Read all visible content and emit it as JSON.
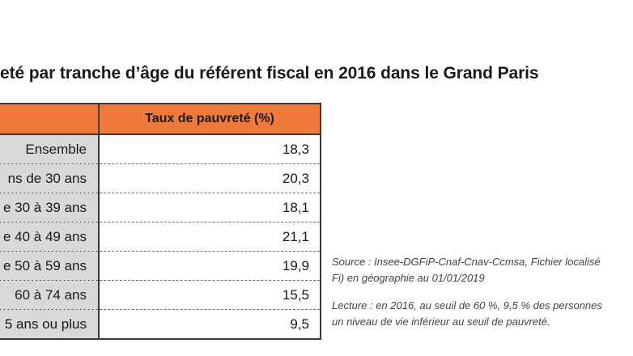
{
  "title": "eté par tranche d’âge du référent fiscal en 2016 dans le Grand Paris",
  "table": {
    "header_label": "",
    "header_value": "Taux de pauvreté (%)",
    "rows": [
      {
        "label": "Ensemble",
        "value": "18,3"
      },
      {
        "label": "ns de 30 ans",
        "value": "20,3"
      },
      {
        "label": "e 30 à 39 ans",
        "value": "18,1"
      },
      {
        "label": "e 40 à 49 ans",
        "value": "21,1"
      },
      {
        "label": "e 50 à 59 ans",
        "value": "19,9"
      },
      {
        "label": "60 à 74 ans",
        "value": "15,5"
      },
      {
        "label": "5 ans ou plus",
        "value": "9,5"
      }
    ]
  },
  "notes": {
    "source_line1": "Source : Insee-DGFiP-Cnaf-Cnav-Ccmsa, Fichier localisé",
    "source_line2": "Fi) en géographie au 01/01/2019",
    "lecture_line1": "Lecture : en 2016, au seuil de 60 %, 9,5 % des personnes",
    "lecture_line2": "un niveau de vie inférieur au seuil de pauvreté."
  },
  "colors": {
    "header_bg": "#f07a3a",
    "label_bg": "#d9d9d9"
  }
}
